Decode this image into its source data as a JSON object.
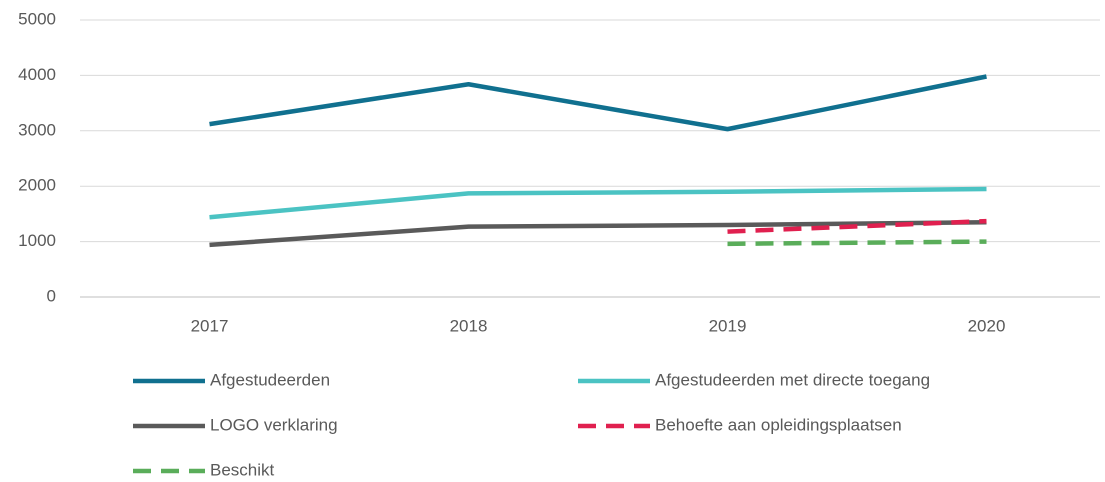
{
  "chart_data": {
    "type": "line",
    "categories": [
      "2017",
      "2018",
      "2019",
      "2020"
    ],
    "series": [
      {
        "name": "Afgestudeerden",
        "color": "#10708f",
        "dashed": false,
        "values": [
          3120,
          3840,
          3030,
          3980
        ]
      },
      {
        "name": "Afgestudeerden met directe toegang",
        "color": "#4bc3c3",
        "dashed": false,
        "values": [
          1440,
          1870,
          1900,
          1950
        ]
      },
      {
        "name": "LOGO verklaring",
        "color": "#5a5a5a",
        "dashed": false,
        "values": [
          940,
          1270,
          1300,
          1350
        ]
      },
      {
        "name": "Behoefte aan opleidingsplaatsen",
        "color": "#e0204f",
        "dashed": true,
        "values": [
          null,
          null,
          1180,
          1370
        ]
      },
      {
        "name": "Beschikt",
        "color": "#5aad5a",
        "dashed": true,
        "values": [
          null,
          null,
          960,
          1000
        ]
      }
    ],
    "ylim": [
      0,
      5000
    ],
    "yticks": [
      0,
      1000,
      2000,
      3000,
      4000,
      5000
    ],
    "grid": true,
    "legend": "bottom"
  }
}
